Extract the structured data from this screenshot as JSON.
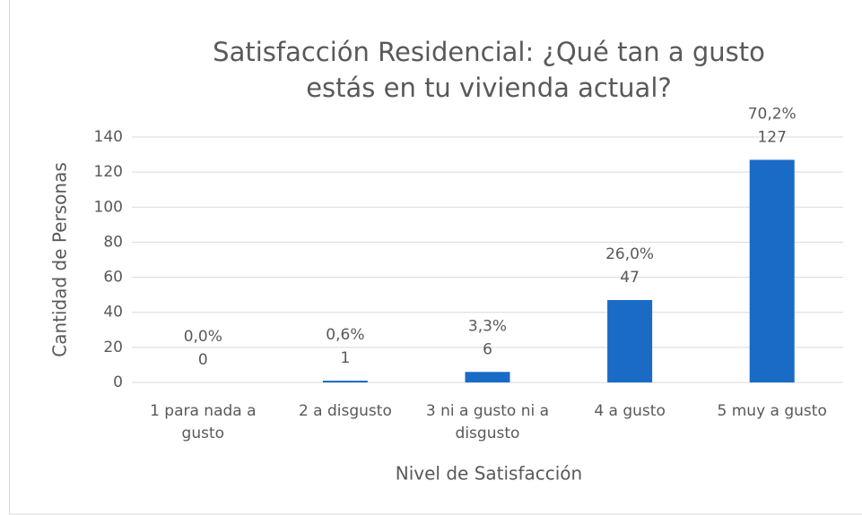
{
  "chart_data": {
    "type": "bar",
    "title": "Satisfacción Residencial: ¿Qué tan a gusto estás en tu vivienda actual?",
    "x_label": "Nivel de Satisfacción",
    "y_label": "Cantidad de Personas",
    "categories": [
      "1 para nada a gusto",
      "2 a disgusto",
      "3 ni a gusto ni a disgusto",
      "4 a gusto",
      "5 muy a gusto"
    ],
    "values": [
      0,
      1,
      6,
      47,
      127
    ],
    "percent_labels": [
      "0,0%",
      "0,6%",
      "3,3%",
      "26,0%",
      "70,2%"
    ],
    "color": "#1a6bc6",
    "ylim": [
      0,
      140
    ],
    "yticks": [
      0,
      20,
      40,
      60,
      80,
      100,
      120,
      140
    ],
    "grid": true
  }
}
